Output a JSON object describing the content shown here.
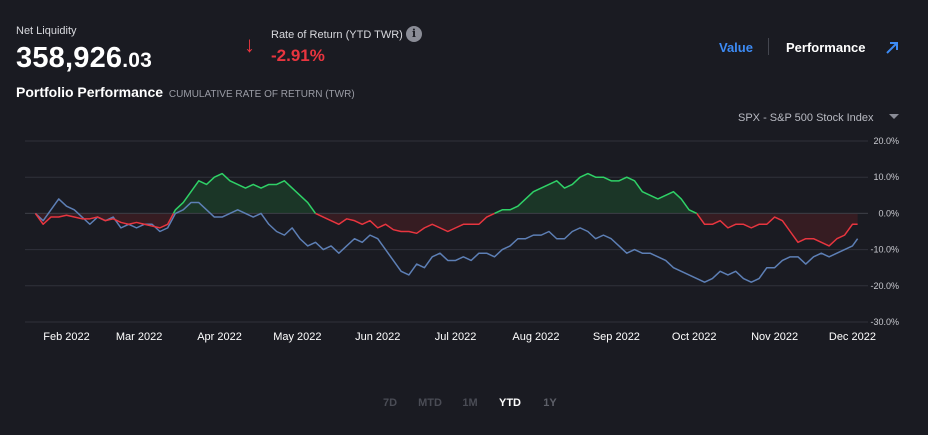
{
  "header": {
    "net_liquidity_label": "Net Liquidity",
    "net_liquidity_main": "358,926",
    "net_liquidity_decimal": ".03",
    "ror_label": "Rate of Return (YTD TWR)",
    "ror_value": "-2.91%",
    "info_icon": "i",
    "toggle_value": "Value",
    "toggle_performance": "Performance",
    "expand_icon": "arrow-up-right-icon"
  },
  "section": {
    "title": "Portfolio Performance",
    "subtitle": "CUMULATIVE RATE OF RETURN (TWR)"
  },
  "benchmark_select": {
    "selected": "SPX - S&P 500 Stock Index"
  },
  "ranges": [
    "7D",
    "MTD",
    "1M",
    "YTD",
    "1Y"
  ],
  "active_range": "YTD",
  "colors": {
    "background": "#1a1b22",
    "portfolio_positive": "#2fd167",
    "portfolio_negative": "#e8353f",
    "benchmark": "#5d7fb5",
    "accent": "#3d8bf5"
  },
  "chart_data": {
    "type": "line",
    "x_unit": "day of 2022",
    "xticks": [
      {
        "label": "Feb 2022",
        "day": 31
      },
      {
        "label": "Mar 2022",
        "day": 59
      },
      {
        "label": "Apr 2022",
        "day": 90
      },
      {
        "label": "May 2022",
        "day": 120
      },
      {
        "label": "Jun 2022",
        "day": 151
      },
      {
        "label": "Jul 2022",
        "day": 181
      },
      {
        "label": "Aug 2022",
        "day": 212
      },
      {
        "label": "Sep 2022",
        "day": 243
      },
      {
        "label": "Oct 2022",
        "day": 273
      },
      {
        "label": "Nov 2022",
        "day": 304
      },
      {
        "label": "Dec 2022",
        "day": 334
      }
    ],
    "ylim": [
      -30,
      20
    ],
    "yticks": [
      20,
      10,
      0,
      -10,
      -20,
      -30
    ],
    "ytick_labels": [
      "20.0%",
      "10.0%",
      "0.0%",
      "-10.0%",
      "-20.0%",
      "-30.0%"
    ],
    "grid": true,
    "series": [
      {
        "role": "portfolio",
        "x": [
          19,
          22,
          25,
          28,
          31,
          34,
          37,
          40,
          43,
          46,
          49,
          52,
          55,
          58,
          61,
          64,
          67,
          70,
          73,
          76,
          79,
          82,
          85,
          88,
          91,
          94,
          97,
          100,
          103,
          106,
          109,
          112,
          115,
          118,
          121,
          124,
          127,
          130,
          133,
          136,
          139,
          142,
          145,
          148,
          151,
          154,
          157,
          160,
          163,
          166,
          169,
          172,
          175,
          178,
          181,
          184,
          187,
          190,
          193,
          196,
          199,
          202,
          205,
          208,
          211,
          214,
          217,
          220,
          223,
          226,
          229,
          232,
          235,
          238,
          241,
          244,
          247,
          250,
          253,
          256,
          259,
          262,
          265,
          268,
          271,
          274,
          277,
          280,
          283,
          286,
          289,
          292,
          295,
          298,
          301,
          304,
          307,
          310,
          313,
          316,
          319,
          322,
          325,
          328,
          331,
          334,
          336
        ],
        "y": [
          0,
          -3,
          -1,
          -1,
          -0.5,
          -1,
          -1.5,
          -1.5,
          -1,
          -2,
          -1.5,
          -2.5,
          -3,
          -2.5,
          -3,
          -3.5,
          -4,
          -3,
          1,
          3,
          6,
          9,
          8,
          10,
          11,
          9,
          8,
          7,
          8,
          7,
          8,
          8,
          9,
          7,
          5,
          3,
          0,
          -1,
          -2,
          -3,
          -1.5,
          -2,
          -3,
          -2,
          -4,
          -3,
          -4.5,
          -5,
          -5,
          -5.5,
          -4,
          -3,
          -4,
          -5,
          -4,
          -3,
          -3,
          -3,
          -1,
          0,
          1,
          1,
          2,
          4,
          6,
          7,
          8,
          9,
          7,
          8,
          10,
          11,
          10,
          10,
          9,
          9,
          10,
          9,
          6,
          5,
          4,
          5,
          6,
          4,
          1,
          0,
          -3,
          -3,
          -2,
          -4,
          -3,
          -3,
          -4,
          -3,
          -3,
          -1,
          -2,
          -5,
          -8,
          -7,
          -7,
          -8,
          -9,
          -7,
          -6,
          -3,
          -3
        ]
      },
      {
        "role": "benchmark",
        "x": [
          19,
          22,
          25,
          28,
          31,
          34,
          37,
          40,
          43,
          46,
          49,
          52,
          55,
          58,
          61,
          64,
          67,
          70,
          73,
          76,
          79,
          82,
          85,
          88,
          91,
          94,
          97,
          100,
          103,
          106,
          109,
          112,
          115,
          118,
          121,
          124,
          127,
          130,
          133,
          136,
          139,
          142,
          145,
          148,
          151,
          154,
          157,
          160,
          163,
          166,
          169,
          172,
          175,
          178,
          181,
          184,
          187,
          190,
          193,
          196,
          199,
          202,
          205,
          208,
          211,
          214,
          217,
          220,
          223,
          226,
          229,
          232,
          235,
          238,
          241,
          244,
          247,
          250,
          253,
          256,
          259,
          262,
          265,
          268,
          271,
          274,
          277,
          280,
          283,
          286,
          289,
          292,
          295,
          298,
          301,
          304,
          307,
          310,
          313,
          316,
          319,
          322,
          325,
          328,
          331,
          334,
          336
        ],
        "y": [
          0,
          -2,
          1,
          4,
          2,
          1,
          -1,
          -3,
          -1,
          -2,
          -1,
          -4,
          -3,
          -4,
          -3,
          -3,
          -5,
          -4,
          0,
          1,
          3,
          3,
          1,
          -1,
          -1,
          0,
          1,
          0,
          -1,
          0,
          -3,
          -5,
          -6,
          -4,
          -7,
          -9,
          -8,
          -10,
          -9,
          -11,
          -9,
          -7,
          -8,
          -6,
          -7,
          -10,
          -13,
          -16,
          -17,
          -14,
          -15,
          -12,
          -11,
          -13,
          -13,
          -12,
          -13,
          -11,
          -11,
          -12,
          -10,
          -9,
          -7,
          -7,
          -6,
          -6,
          -5,
          -7,
          -7,
          -5,
          -4,
          -5,
          -7,
          -6,
          -7,
          -9,
          -11,
          -10,
          -11,
          -11,
          -12,
          -13,
          -15,
          -16,
          -17,
          -18,
          -19,
          -18,
          -16,
          -17,
          -16,
          -18,
          -19,
          -18,
          -15,
          -15,
          -13,
          -12,
          -12,
          -14,
          -12,
          -11,
          -12,
          -11,
          -10,
          -9,
          -7
        ]
      }
    ]
  }
}
